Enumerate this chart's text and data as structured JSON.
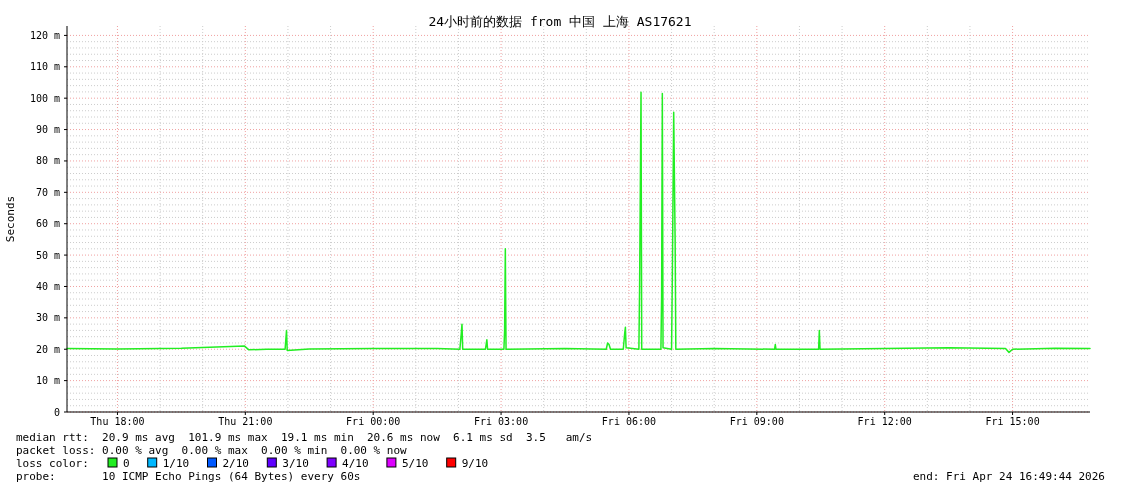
{
  "chart_data": {
    "type": "line",
    "title": "24小时前的数据 from 中国 上海 AS17621",
    "ylabel": "Seconds",
    "xlim": [
      "2026-04-23T16:49",
      "2026-04-24T16:49"
    ],
    "xticks": [
      {
        "value": "2026-04-23T18:00",
        "label": "Thu 18:00"
      },
      {
        "value": "2026-04-23T21:00",
        "label": "Thu 21:00"
      },
      {
        "value": "2026-04-24T00:00",
        "label": "Fri 00:00"
      },
      {
        "value": "2026-04-24T03:00",
        "label": "Fri 03:00"
      },
      {
        "value": "2026-04-24T06:00",
        "label": "Fri 06:00"
      },
      {
        "value": "2026-04-24T09:00",
        "label": "Fri 09:00"
      },
      {
        "value": "2026-04-24T12:00",
        "label": "Fri 12:00"
      },
      {
        "value": "2026-04-24T15:00",
        "label": "Fri 15:00"
      }
    ],
    "ylim": [
      0,
      123
    ],
    "yticks": [
      0,
      {
        "value": 10,
        "label": "10 m"
      },
      {
        "value": 20,
        "label": "20 m"
      },
      {
        "value": 30,
        "label": "30 m"
      },
      {
        "value": 40,
        "label": "40 m"
      },
      {
        "value": 50,
        "label": "50 m"
      },
      {
        "value": 60,
        "label": "60 m"
      },
      {
        "value": 70,
        "label": "70 m"
      },
      {
        "value": 80,
        "label": "80 m"
      },
      {
        "value": 90,
        "label": "90 m"
      },
      {
        "value": 100,
        "label": "100 m"
      },
      {
        "value": 110,
        "label": "110 m"
      },
      {
        "value": 120,
        "label": "120 m"
      }
    ],
    "grid": true,
    "legend": "bottom",
    "legend_title": "loss color:",
    "marker": "none",
    "line_style": "solid",
    "series": [
      {
        "name": "0",
        "color": "#22ee22",
        "x": [
          "2026-04-23T16:49",
          "2026-04-23T18:00",
          "2026-04-23T19:30",
          "2026-04-23T20:59",
          "2026-04-23T21:05",
          "2026-04-23T21:30",
          "2026-04-23T21:56",
          "2026-04-23T21:58",
          "2026-04-23T21:59",
          "2026-04-23T22:30",
          "2026-04-24T00:00",
          "2026-04-24T01:30",
          "2026-04-24T02:02",
          "2026-04-24T02:04",
          "2026-04-24T02:05",
          "2026-04-24T02:06",
          "2026-04-24T02:38",
          "2026-04-24T02:40",
          "2026-04-24T02:41",
          "2026-04-24T03:04",
          "2026-04-24T03:05",
          "2026-04-24T03:06",
          "2026-04-24T03:07",
          "2026-04-24T04:30",
          "2026-04-24T05:28",
          "2026-04-24T05:30",
          "2026-04-24T05:32",
          "2026-04-24T05:34",
          "2026-04-24T05:52",
          "2026-04-24T05:54",
          "2026-04-24T05:55",
          "2026-04-24T05:56",
          "2026-04-24T06:14",
          "2026-04-24T06:15",
          "2026-04-24T06:17",
          "2026-04-24T06:18",
          "2026-04-24T06:45",
          "2026-04-24T06:46",
          "2026-04-24T06:47",
          "2026-04-24T06:48",
          "2026-04-24T07:00",
          "2026-04-24T07:01",
          "2026-04-24T07:03",
          "2026-04-24T07:05",
          "2026-04-24T07:06",
          "2026-04-24T08:00",
          "2026-04-24T09:25",
          "2026-04-24T09:26",
          "2026-04-24T09:27",
          "2026-04-24T10:27",
          "2026-04-24T10:28",
          "2026-04-24T10:29",
          "2026-04-24T12:00",
          "2026-04-24T13:30",
          "2026-04-24T14:50",
          "2026-04-24T14:55",
          "2026-04-24T15:00",
          "2026-04-24T16:00",
          "2026-04-24T16:49"
        ],
        "values": [
          20.2,
          20.1,
          20.3,
          21,
          19.8,
          20,
          20,
          26,
          19.6,
          20.1,
          20.2,
          20.2,
          20,
          25,
          28,
          20,
          20,
          23,
          20,
          20,
          26,
          52,
          20,
          20.2,
          20,
          22,
          21.5,
          20,
          20,
          25,
          27,
          20.5,
          20,
          40,
          101.9,
          20,
          20,
          37,
          101.5,
          20.5,
          20,
          41,
          95.5,
          55,
          20,
          20.2,
          20,
          21.5,
          20,
          20,
          26,
          20,
          20.2,
          20.5,
          20.2,
          19,
          20,
          20.3,
          20.2
        ]
      },
      {
        "name": "1/10",
        "color": "#00b8ff"
      },
      {
        "name": "2/10",
        "color": "#0059ff"
      },
      {
        "name": "3/10",
        "color": "#5e00ff"
      },
      {
        "name": "4/10",
        "color": "#7e00ff"
      },
      {
        "name": "5/10",
        "color": "#dd00ff"
      },
      {
        "name": "9/10",
        "color": "#ff0000"
      }
    ],
    "annotations": [
      "median rtt:  20.9 ms avg  101.9 ms max  19.1 ms min  20.6 ms now  6.1 ms sd  3.5   am/s",
      "packet loss: 0.00 % avg  0.00 % max  0.00 % min  0.00 % now",
      "probe:       10 ICMP Echo Pings (64 Bytes) every 60s",
      "end: Fri Apr 24 16:49:44 2026"
    ]
  }
}
